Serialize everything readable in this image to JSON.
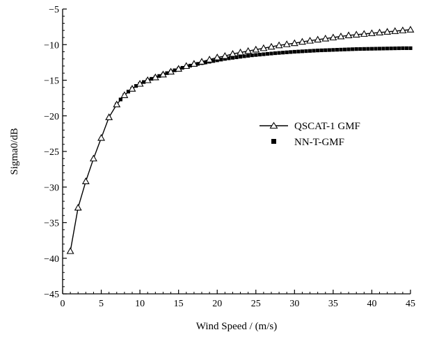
{
  "chart_data": {
    "type": "line",
    "xlabel": "Wind Speed / (m/s)",
    "ylabel": "Sigma0/dB",
    "xlim": [
      0,
      45
    ],
    "ylim": [
      -45,
      -5
    ],
    "x_ticks": [
      0,
      5,
      10,
      15,
      20,
      25,
      30,
      35,
      40,
      45
    ],
    "y_ticks": [
      -45,
      -40,
      -35,
      -30,
      -25,
      -20,
      -15,
      -10,
      -5
    ],
    "x_tick_labels": [
      "0",
      "5",
      "10",
      "15",
      "20",
      "25",
      "30",
      "35",
      "40",
      "45"
    ],
    "y_tick_labels": [
      "−45",
      "−40",
      "−35",
      "−30",
      "−25",
      "−20",
      "−15",
      "−10",
      "−5"
    ],
    "legend_position": "center-right",
    "series": [
      {
        "name": "QSCAT-1 GMF",
        "style": "line-with-open-triangles",
        "color": "#000000",
        "x": [
          1,
          2,
          3,
          4,
          5,
          6,
          7,
          8,
          9,
          10,
          11,
          12,
          13,
          14,
          15,
          16,
          17,
          18,
          19,
          20,
          21,
          22,
          23,
          24,
          25,
          26,
          27,
          28,
          29,
          30,
          31,
          32,
          33,
          34,
          35,
          36,
          37,
          38,
          39,
          40,
          41,
          42,
          43,
          44,
          45
        ],
        "values": [
          -39.0,
          -32.9,
          -29.2,
          -26.0,
          -23.1,
          -20.2,
          -18.4,
          -17.1,
          -16.2,
          -15.5,
          -15.0,
          -14.6,
          -14.2,
          -13.8,
          -13.4,
          -13.0,
          -12.7,
          -12.4,
          -12.1,
          -11.8,
          -11.6,
          -11.3,
          -11.1,
          -10.9,
          -10.7,
          -10.5,
          -10.3,
          -10.1,
          -9.95,
          -9.8,
          -9.6,
          -9.45,
          -9.3,
          -9.15,
          -9.0,
          -8.85,
          -8.7,
          -8.6,
          -8.5,
          -8.4,
          -8.3,
          -8.2,
          -8.1,
          -8.0,
          -7.9
        ]
      },
      {
        "name": "NN-T-GMF",
        "style": "filled-squares",
        "color": "#000000",
        "x": [
          7,
          7.5,
          8,
          8.5,
          9,
          9.5,
          10,
          10.5,
          11,
          11.5,
          12,
          12.5,
          13,
          13.5,
          14,
          14.5,
          15,
          15.5,
          16,
          16.5,
          17,
          17.5,
          18,
          18.5,
          19,
          19.5,
          20,
          20.5,
          21,
          21.5,
          22,
          22.5,
          23,
          23.5,
          24,
          24.5,
          25,
          25.5,
          26,
          26.5,
          27,
          27.5,
          28,
          28.5,
          29,
          29.5,
          30,
          30.5,
          31,
          31.5,
          32,
          32.5,
          33,
          33.5,
          34,
          34.5,
          35,
          35.5,
          36,
          36.5,
          37,
          37.5,
          38,
          38.5,
          39,
          39.5,
          40,
          40.5,
          41,
          41.5,
          42,
          42.5,
          43,
          43.5,
          44,
          44.5,
          45
        ],
        "values": [
          -18.4,
          -17.7,
          -17.1,
          -16.6,
          -16.2,
          -15.8,
          -15.5,
          -15.25,
          -15.0,
          -14.8,
          -14.6,
          -14.4,
          -14.2,
          -14.0,
          -13.8,
          -13.6,
          -13.4,
          -13.25,
          -13.1,
          -12.95,
          -12.8,
          -12.7,
          -12.6,
          -12.5,
          -12.4,
          -12.3,
          -12.2,
          -12.1,
          -12.0,
          -11.92,
          -11.85,
          -11.78,
          -11.7,
          -11.63,
          -11.57,
          -11.5,
          -11.45,
          -11.4,
          -11.35,
          -11.3,
          -11.25,
          -11.2,
          -11.16,
          -11.12,
          -11.08,
          -11.04,
          -11.0,
          -10.97,
          -10.94,
          -10.91,
          -10.88,
          -10.85,
          -10.82,
          -10.8,
          -10.78,
          -10.76,
          -10.74,
          -10.72,
          -10.7,
          -10.68,
          -10.66,
          -10.64,
          -10.62,
          -10.61,
          -10.6,
          -10.59,
          -10.58,
          -10.57,
          -10.56,
          -10.55,
          -10.54,
          -10.53,
          -10.52,
          -10.51,
          -10.5,
          -10.5,
          -10.5
        ]
      }
    ]
  }
}
